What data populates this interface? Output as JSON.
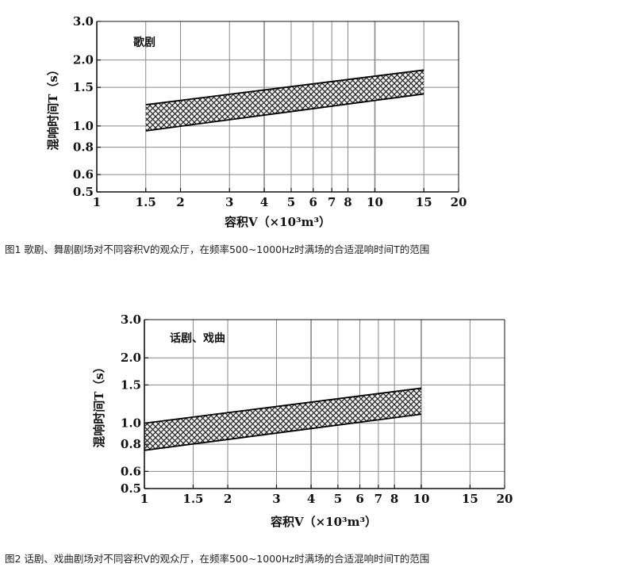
{
  "charts": [
    {
      "caption": "图1 歌剧、舞剧剧场对不同容积V的观众厅，在频率500~1000Hz时满场的合适混响时间T的范围",
      "annotation": "歌剧",
      "colors": {
        "band_fill": "#333333",
        "grid": "#8a8a8a",
        "axis": "#111111"
      }
    },
    {
      "caption": "图2 话剧、戏曲剧场对不同容积V的观众厅，在频率500~1000Hz时满场的合适混响时间T的范围",
      "annotation": "话剧、戏曲",
      "colors": {
        "band_fill": "#333333",
        "grid": "#8a8a8a",
        "axis": "#111111"
      }
    }
  ],
  "chart_data": [
    {
      "type": "area",
      "xscale": "log",
      "yscale": "log",
      "xlim": [
        1,
        20
      ],
      "ylim": [
        0.5,
        3.0
      ],
      "xticks": [
        1,
        1.5,
        2,
        3,
        4,
        5,
        6,
        7,
        8,
        10,
        15,
        20
      ],
      "xtick_labels": [
        "1",
        "1.5",
        "2",
        "3",
        "4",
        "5",
        "6",
        "7",
        "8",
        "10",
        "15",
        "20"
      ],
      "yticks": [
        0.5,
        0.6,
        0.8,
        1.0,
        1.5,
        2.0,
        3.0
      ],
      "ytick_labels": [
        "0.5",
        "0.6",
        "0.8",
        "1.0",
        "1.5",
        "2.0",
        "3.0"
      ],
      "xlabel": "容积V（×10³m³）",
      "ylabel": "混响时间T（s）",
      "grid": true,
      "band": {
        "x": [
          1.5,
          15
        ],
        "lower": [
          0.95,
          1.4
        ],
        "upper": [
          1.25,
          1.8
        ]
      }
    },
    {
      "type": "area",
      "xscale": "log",
      "yscale": "log",
      "xlim": [
        1,
        20
      ],
      "ylim": [
        0.5,
        3.0
      ],
      "xticks": [
        1,
        1.5,
        2,
        3,
        4,
        5,
        6,
        7,
        8,
        10,
        15,
        20
      ],
      "xtick_labels": [
        "1",
        "1.5",
        "2",
        "3",
        "4",
        "5",
        "6",
        "7",
        "8",
        "10",
        "15",
        "20"
      ],
      "yticks": [
        0.5,
        0.6,
        0.8,
        1.0,
        1.5,
        2.0,
        3.0
      ],
      "ytick_labels": [
        "0.5",
        "0.6",
        "0.8",
        "1.0",
        "1.5",
        "2.0",
        "3.0"
      ],
      "xlabel": "容积V（×10³m³）",
      "ylabel": "混响时间T（s）",
      "grid": true,
      "band": {
        "x": [
          1,
          10
        ],
        "lower": [
          0.75,
          1.1
        ],
        "upper": [
          1.0,
          1.45
        ]
      }
    }
  ]
}
